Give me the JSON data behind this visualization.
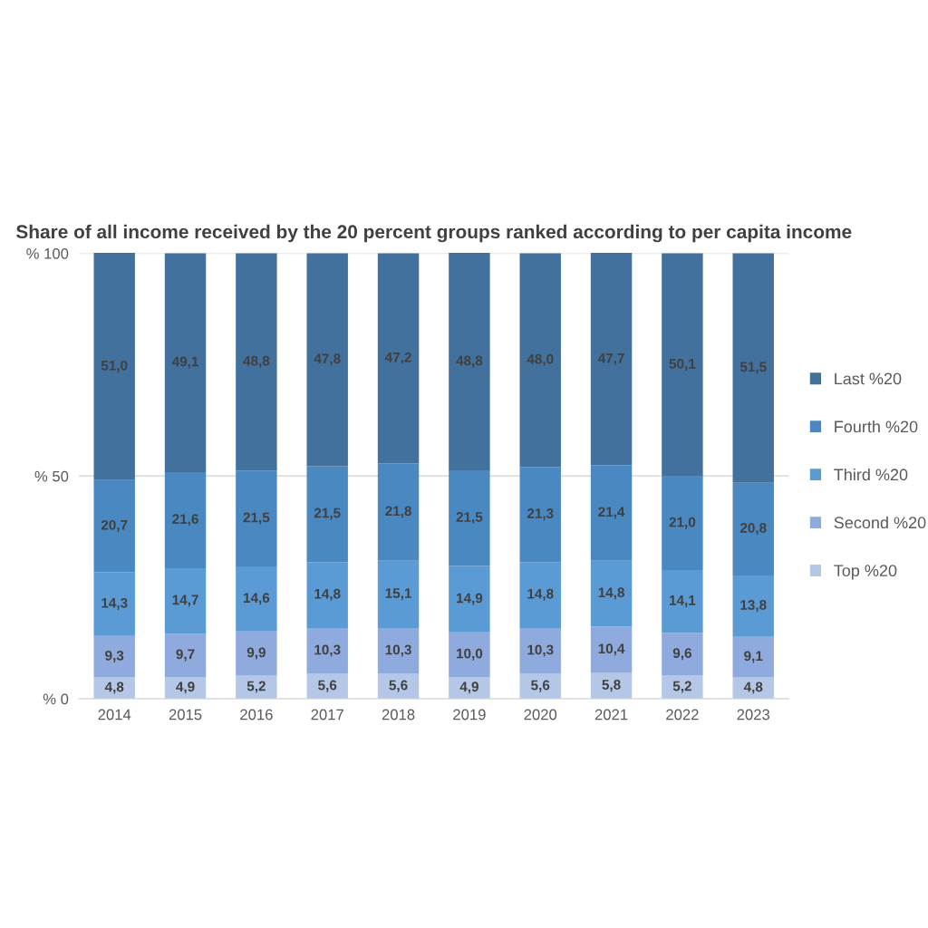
{
  "chart_data": {
    "type": "bar",
    "stacked": true,
    "title": "Share of all income received by the 20 percent groups ranked according to per capita income",
    "categories": [
      "2014",
      "2015",
      "2016",
      "2017",
      "2018",
      "2019",
      "2020",
      "2021",
      "2022",
      "2023"
    ],
    "series": [
      {
        "name": "Top %20",
        "color": "#b4c7e7",
        "values": [
          4.8,
          4.9,
          5.2,
          5.6,
          5.6,
          4.9,
          5.6,
          5.8,
          5.2,
          4.8
        ],
        "value_labels": [
          "4,8",
          "4,9",
          "5,2",
          "5,6",
          "5,6",
          "4,9",
          "5,6",
          "5,8",
          "5,2",
          "4,8"
        ]
      },
      {
        "name": "Second %20",
        "color": "#8faadc",
        "values": [
          9.3,
          9.7,
          9.9,
          10.3,
          10.3,
          10.0,
          10.3,
          10.4,
          9.6,
          9.1
        ],
        "value_labels": [
          "9,3",
          "9,7",
          "9,9",
          "10,3",
          "10,3",
          "10,0",
          "10,3",
          "10,4",
          "9,6",
          "9,1"
        ]
      },
      {
        "name": "Third %20",
        "color": "#5b9bd5",
        "values": [
          14.3,
          14.7,
          14.6,
          14.8,
          15.1,
          14.9,
          14.8,
          14.8,
          14.1,
          13.8
        ],
        "value_labels": [
          "14,3",
          "14,7",
          "14,6",
          "14,8",
          "15,1",
          "14,9",
          "14,8",
          "14,8",
          "14,1",
          "13,8"
        ]
      },
      {
        "name": "Fourth %20",
        "color": "#4a88c2",
        "values": [
          20.7,
          21.6,
          21.5,
          21.5,
          21.8,
          21.5,
          21.3,
          21.4,
          21.0,
          20.8
        ],
        "value_labels": [
          "20,7",
          "21,6",
          "21,5",
          "21,5",
          "21,8",
          "21,5",
          "21,3",
          "21,4",
          "21,0",
          "20,8"
        ]
      },
      {
        "name": "Last %20",
        "color": "#41719c",
        "values": [
          51.0,
          49.1,
          48.8,
          47.8,
          47.2,
          48.8,
          48.0,
          47.7,
          50.1,
          51.5
        ],
        "value_labels": [
          "51,0",
          "49,1",
          "48,8",
          "47,8",
          "47,2",
          "48,8",
          "48,0",
          "47,7",
          "50,1",
          "51,5"
        ]
      }
    ],
    "ylim": [
      0,
      100
    ],
    "yticks": [
      {
        "value": 0,
        "label": "% 0"
      },
      {
        "value": 50,
        "label": "% 50"
      },
      {
        "value": 100,
        "label": "% 100"
      }
    ],
    "grid": "y",
    "legend": "right"
  }
}
